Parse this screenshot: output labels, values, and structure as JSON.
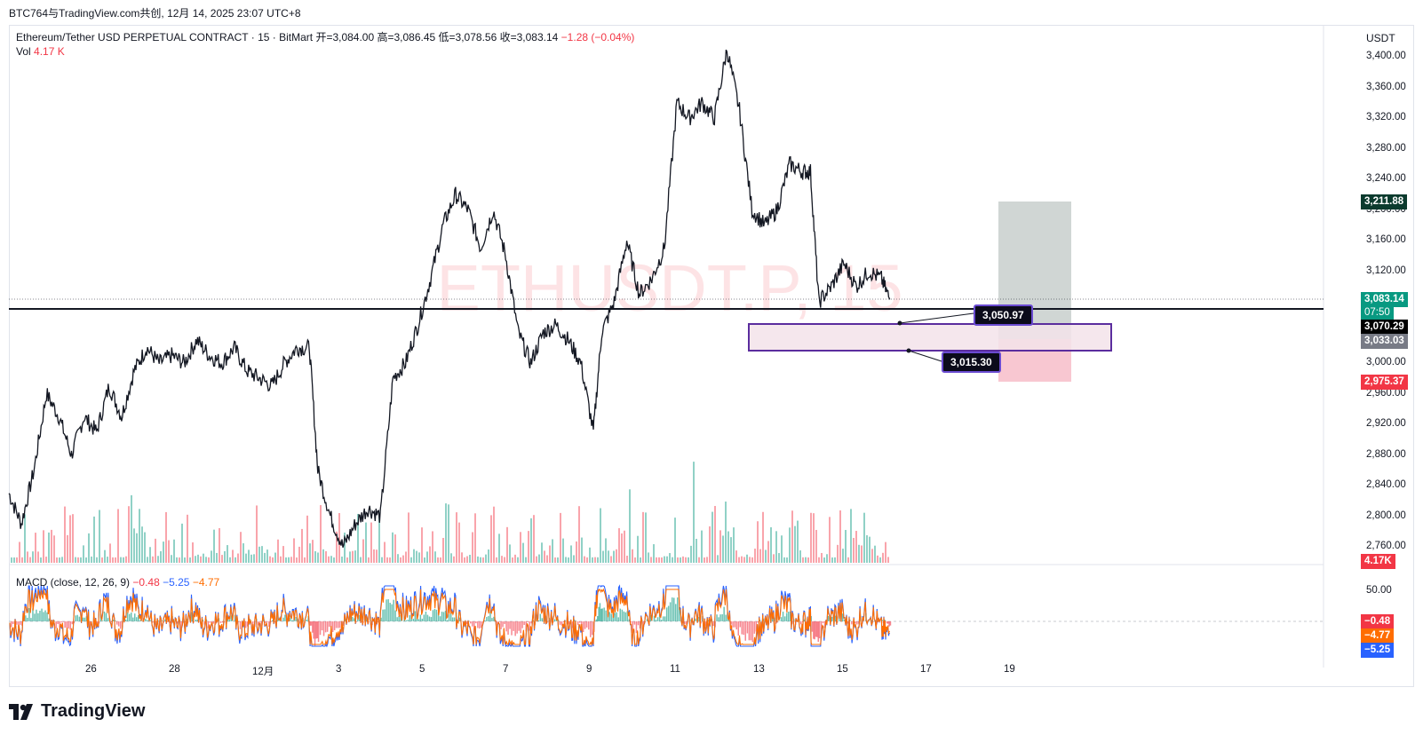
{
  "header": {
    "note": "BTC764与TradingView.com共创, 12月 14, 2025 23:07 UTC+8"
  },
  "legend": {
    "symbol": "Ethereum/Tether USD PERPETUAL CONTRACT · 15 · BitMart",
    "ohlc": "开=3,084.00  高=3,086.45  低=3,078.56  收=3,083.14",
    "change": "−1.28 (−0.04%)",
    "vol_label": "Vol",
    "vol_value": "4.17 K"
  },
  "watermark": "ETHUSDT.P, 15",
  "currency": "USDT",
  "macd_legend": {
    "label": "MACD (close, 12, 26, 9)",
    "v1": "−0.48",
    "v2": "−5.25",
    "v3": "−4.77"
  },
  "brand": {
    "name": "TradingView"
  },
  "callouts": {
    "upper": "3,050.97",
    "lower": "3,015.30"
  },
  "price_tags": {
    "target": "3,211.88",
    "last": "3,083.14",
    "countdown": "07:50",
    "line": "3,070.29",
    "entry": "3,033.03",
    "stop": "2,975.37",
    "vol": "4.17K",
    "macd_a": "−0.48",
    "macd_b": "−4.77",
    "macd_c": "−5.25"
  },
  "colors": {
    "up": "#089981",
    "down": "#f23645",
    "macd": "#2962ff",
    "signal": "#ff6d00",
    "zone": "#5b2d9e"
  },
  "chart_data": {
    "type": "line",
    "title": "Ethereum/Tether USD PERPETUAL CONTRACT · 15 · BitMart",
    "xlabel": "",
    "ylabel": "USDT",
    "ylim": [
      2740,
      3420
    ],
    "y_ticks": [
      "3,400.00",
      "3,360.00",
      "3,320.00",
      "3,280.00",
      "3,240.00",
      "3,200.00",
      "3,160.00",
      "3,120.00",
      "3,080.00",
      "3,040.00",
      "3,000.00",
      "2,960.00",
      "2,920.00",
      "2,880.00",
      "2,840.00",
      "2,800.00",
      "2,760.00"
    ],
    "x_ticks": [
      "26",
      "28",
      "12月",
      "3",
      "5",
      "7",
      "9",
      "11",
      "13",
      "15",
      "17",
      "19"
    ],
    "macd_ticks": [
      "50.00"
    ],
    "series": [
      {
        "values": [
          [
            24.0,
            2830
          ],
          [
            24.3,
            2790
          ],
          [
            24.6,
            2860
          ],
          [
            24.9,
            2960
          ],
          [
            25.2,
            2930
          ],
          [
            25.5,
            2880
          ],
          [
            25.8,
            2930
          ],
          [
            26.1,
            2910
          ],
          [
            26.4,
            2970
          ],
          [
            26.7,
            2930
          ],
          [
            27.0,
            2990
          ],
          [
            27.3,
            3020
          ],
          [
            27.6,
            3000
          ],
          [
            27.9,
            3010
          ],
          [
            28.2,
            3000
          ],
          [
            28.5,
            3030
          ],
          [
            28.8,
            3010
          ],
          [
            29.1,
            3000
          ],
          [
            29.4,
            3020
          ],
          [
            29.7,
            2990
          ],
          [
            30.0,
            2980
          ],
          [
            30.3,
            2970
          ],
          [
            30.6,
            3000
          ],
          [
            30.9,
            3020
          ],
          [
            31.2,
            3020
          ],
          [
            31.4,
            2860
          ],
          [
            31.7,
            2800
          ],
          [
            32.0,
            2760
          ],
          [
            32.3,
            2790
          ],
          [
            32.6,
            2810
          ],
          [
            32.9,
            2800
          ],
          [
            33.2,
            2980
          ],
          [
            33.5,
            3000
          ],
          [
            33.8,
            3050
          ],
          [
            34.1,
            3110
          ],
          [
            34.4,
            3180
          ],
          [
            34.7,
            3220
          ],
          [
            35.0,
            3200
          ],
          [
            35.3,
            3150
          ],
          [
            35.6,
            3200
          ],
          [
            35.9,
            3140
          ],
          [
            36.2,
            3040
          ],
          [
            36.5,
            3000
          ],
          [
            36.8,
            3040
          ],
          [
            37.1,
            3050
          ],
          [
            37.4,
            3030
          ],
          [
            37.7,
            3000
          ],
          [
            38.0,
            2910
          ],
          [
            38.2,
            3040
          ],
          [
            38.5,
            3080
          ],
          [
            38.8,
            3160
          ],
          [
            39.1,
            3090
          ],
          [
            39.4,
            3110
          ],
          [
            39.7,
            3150
          ],
          [
            40.0,
            3340
          ],
          [
            40.3,
            3320
          ],
          [
            40.6,
            3340
          ],
          [
            40.9,
            3320
          ],
          [
            41.2,
            3410
          ],
          [
            41.5,
            3330
          ],
          [
            41.8,
            3200
          ],
          [
            42.1,
            3180
          ],
          [
            42.4,
            3200
          ],
          [
            42.7,
            3260
          ],
          [
            43.0,
            3250
          ],
          [
            43.2,
            3250
          ],
          [
            43.4,
            3080
          ],
          [
            43.7,
            3100
          ],
          [
            44.0,
            3130
          ],
          [
            44.3,
            3100
          ],
          [
            44.6,
            3120
          ],
          [
            44.9,
            3110
          ],
          [
            45.1,
            3083
          ]
        ]
      }
    ],
    "volume_peak_label": "4.17K"
  },
  "annotations": {
    "support_zone": {
      "top": 3052,
      "bottom": 3015
    },
    "position": {
      "entry": 3033.03,
      "target": 3211.88,
      "stop": 2975.37
    },
    "horizontal_line": 3070.29
  }
}
